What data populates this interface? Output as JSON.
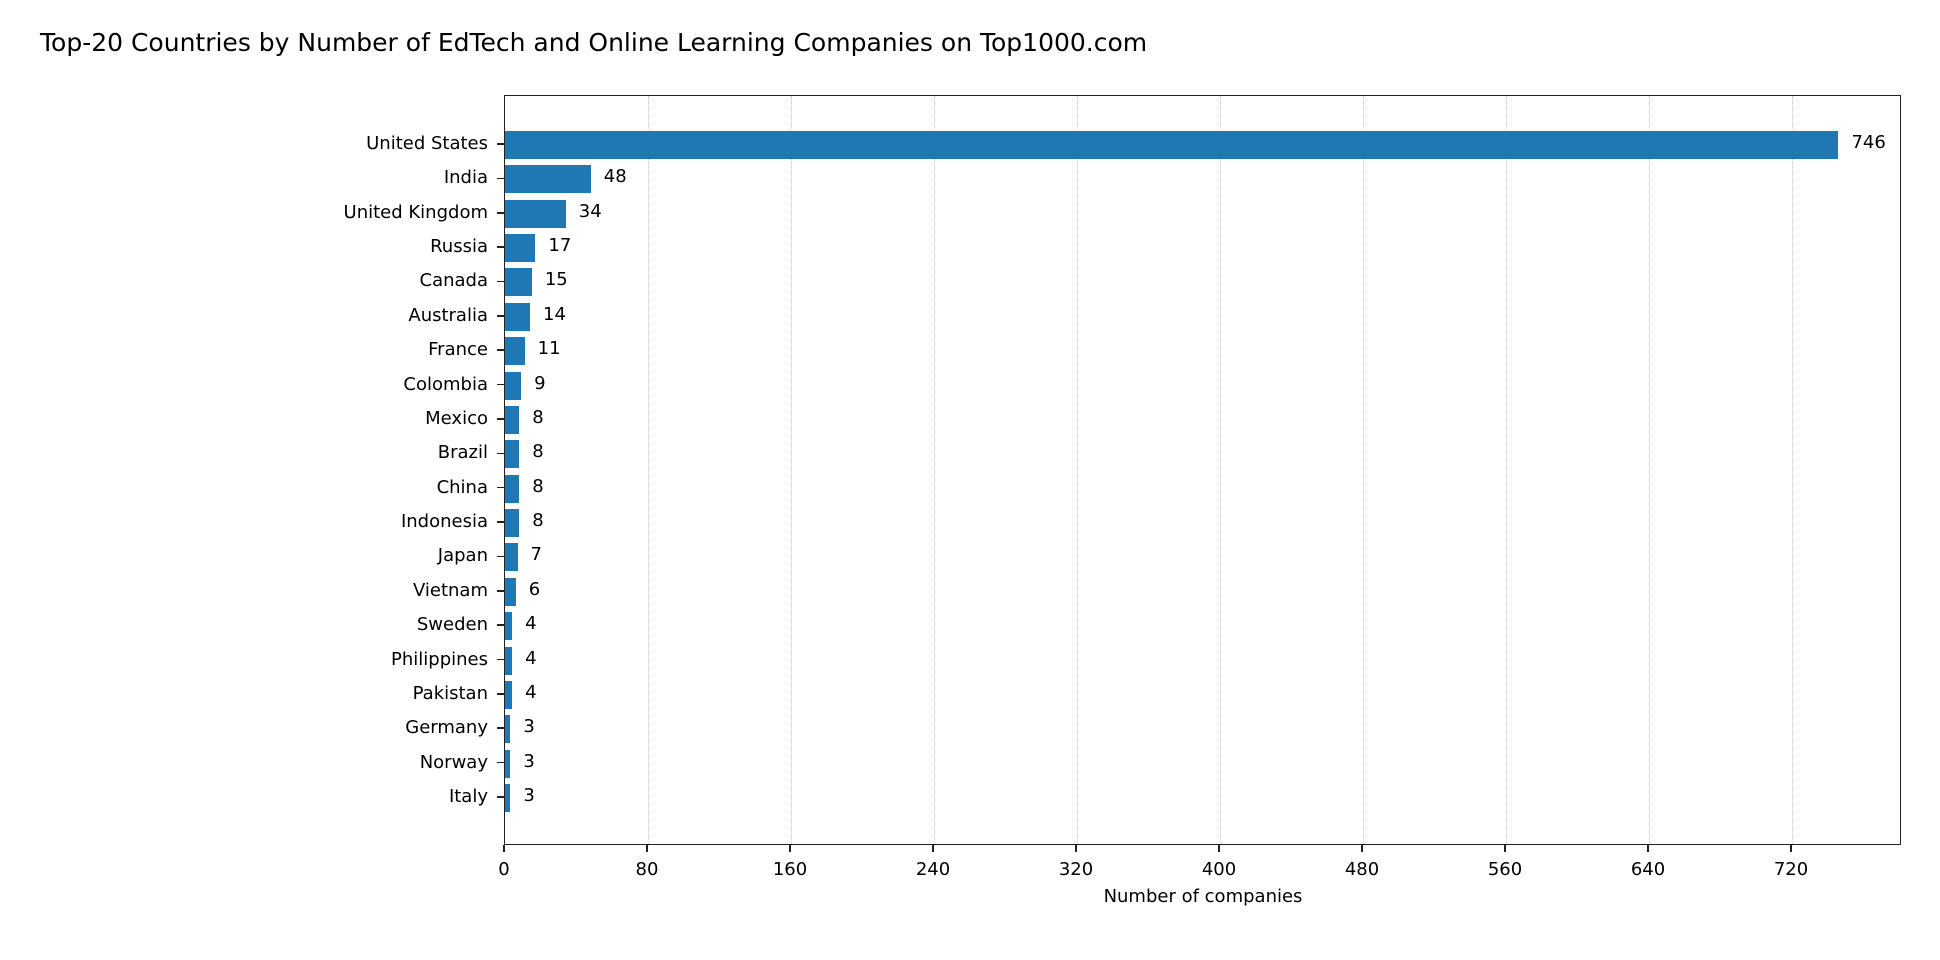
{
  "title": "Top-20 Countries by Number of EdTech and Online Learning Companies on Top1000.com",
  "chart_data": {
    "type": "bar",
    "orientation": "horizontal",
    "title": "Top-20 Countries by Number of EdTech and Online Learning Companies on Top1000.com",
    "xlabel": "Number of companies",
    "ylabel": "",
    "categories": [
      "United States",
      "India",
      "United Kingdom",
      "Russia",
      "Canada",
      "Australia",
      "France",
      "Colombia",
      "Mexico",
      "Brazil",
      "China",
      "Indonesia",
      "Japan",
      "Vietnam",
      "Sweden",
      "Philippines",
      "Pakistan",
      "Germany",
      "Norway",
      "Italy"
    ],
    "values": [
      746,
      48,
      34,
      17,
      15,
      14,
      11,
      9,
      8,
      8,
      8,
      8,
      7,
      6,
      4,
      4,
      4,
      3,
      3,
      3
    ],
    "xlim": [
      0,
      783
    ],
    "xticks": [
      0,
      80,
      160,
      240,
      320,
      400,
      480,
      560,
      640,
      720
    ],
    "grid": {
      "x": true,
      "style": "dotted",
      "color": "#c8c8c8"
    },
    "bar_color": "#1f77b4",
    "data_labels": true,
    "legend": null
  }
}
